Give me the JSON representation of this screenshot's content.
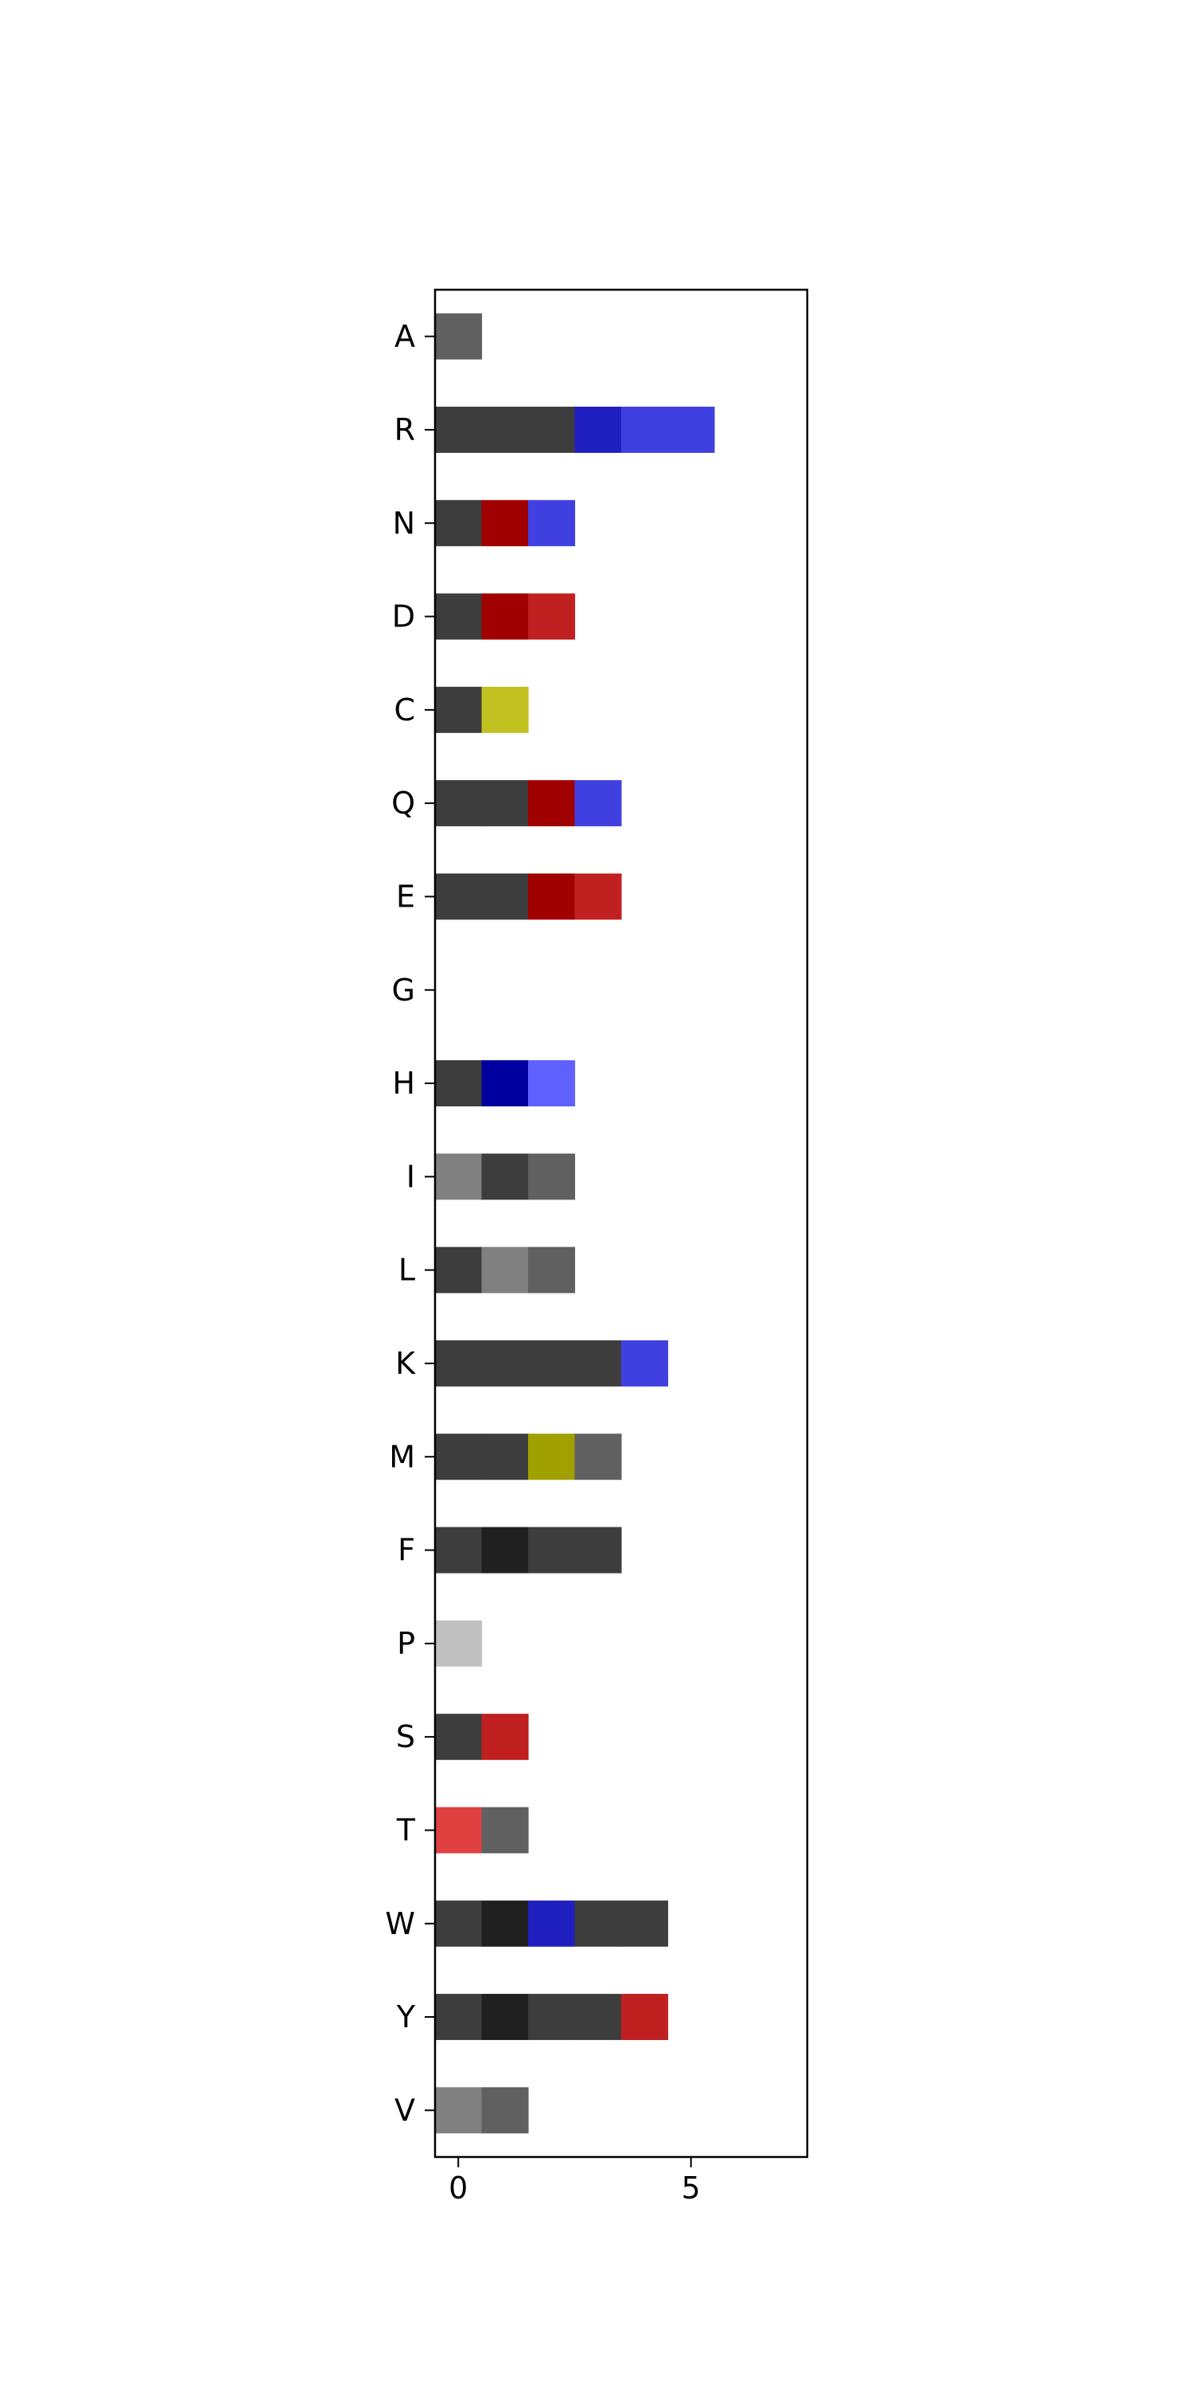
{
  "chart_data": {
    "type": "heatmap",
    "title": "",
    "xlabel": "",
    "ylabel": "",
    "xlim": [
      -0.5,
      7.5
    ],
    "x_ticks": [
      0,
      5
    ],
    "grid": false,
    "legend": "none",
    "rows": [
      {
        "label": "A",
        "cells": [
          "#606060"
        ]
      },
      {
        "label": "R",
        "cells": [
          "#3d3d3d",
          "#3d3d3d",
          "#3d3d3d",
          "#2020c0",
          "#4040e0",
          "#4040e0"
        ]
      },
      {
        "label": "N",
        "cells": [
          "#3d3d3d",
          "#a00000",
          "#4040e0"
        ]
      },
      {
        "label": "D",
        "cells": [
          "#3d3d3d",
          "#a00000",
          "#c02020"
        ]
      },
      {
        "label": "C",
        "cells": [
          "#3d3d3d",
          "#c0c020"
        ]
      },
      {
        "label": "Q",
        "cells": [
          "#3d3d3d",
          "#3d3d3d",
          "#a00000",
          "#4040e0"
        ]
      },
      {
        "label": "E",
        "cells": [
          "#3d3d3d",
          "#3d3d3d",
          "#a00000",
          "#c02020"
        ]
      },
      {
        "label": "G",
        "cells": []
      },
      {
        "label": "H",
        "cells": [
          "#3d3d3d",
          "#0000a0",
          "#6060ff"
        ]
      },
      {
        "label": "I",
        "cells": [
          "#808080",
          "#3d3d3d",
          "#606060"
        ]
      },
      {
        "label": "L",
        "cells": [
          "#3d3d3d",
          "#808080",
          "#606060"
        ]
      },
      {
        "label": "K",
        "cells": [
          "#3d3d3d",
          "#3d3d3d",
          "#3d3d3d",
          "#3d3d3d",
          "#4040e0"
        ]
      },
      {
        "label": "M",
        "cells": [
          "#3d3d3d",
          "#3d3d3d",
          "#a0a000",
          "#606060"
        ]
      },
      {
        "label": "F",
        "cells": [
          "#3d3d3d",
          "#202020",
          "#3d3d3d",
          "#3d3d3d"
        ]
      },
      {
        "label": "P",
        "cells": [
          "#c0c0c0"
        ]
      },
      {
        "label": "S",
        "cells": [
          "#3d3d3d",
          "#c02020"
        ]
      },
      {
        "label": "T",
        "cells": [
          "#e04040",
          "#606060"
        ]
      },
      {
        "label": "W",
        "cells": [
          "#3d3d3d",
          "#202020",
          "#2020c0",
          "#3d3d3d",
          "#3d3d3d"
        ]
      },
      {
        "label": "Y",
        "cells": [
          "#3d3d3d",
          "#202020",
          "#3d3d3d",
          "#3d3d3d",
          "#c02020"
        ]
      },
      {
        "label": "V",
        "cells": [
          "#808080",
          "#606060"
        ]
      }
    ]
  }
}
